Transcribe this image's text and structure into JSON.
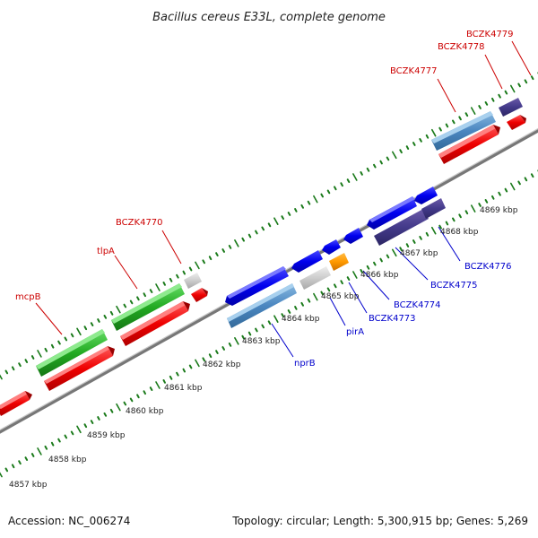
{
  "title": "Bacillus cereus E33L, complete genome",
  "footer": {
    "accession": "Accession: NC_006274",
    "summary": "Topology: circular; Length: 5,300,915 bp; Genes: 5,269"
  },
  "colors": {
    "red_label": "#cc0000",
    "blue_label": "#0000cc",
    "tick": "#1a7a1a",
    "backbone": "#888888"
  },
  "tick_labels": [
    "4857 kbp",
    "4858 kbp",
    "4859 kbp",
    "4860 kbp",
    "4861 kbp",
    "4862 kbp",
    "4863 kbp",
    "4864 kbp",
    "4865 kbp",
    "4866 kbp",
    "4867 kbp",
    "4868 kbp",
    "4869 kbp"
  ],
  "genes_forward": [
    "mcpB",
    "tlpA",
    "BCZK4770",
    "BCZK4777",
    "BCZK4778",
    "BCZK4779"
  ],
  "genes_reverse": [
    "nprB",
    "pirA",
    "BCZK4773",
    "BCZK4774",
    "BCZK4775",
    "BCZK4776"
  ]
}
